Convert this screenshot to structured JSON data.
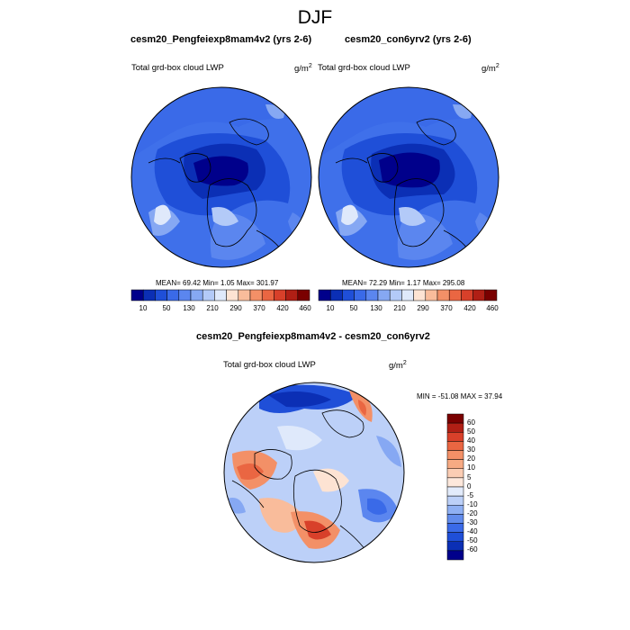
{
  "title": "DJF",
  "panels": {
    "left": {
      "title": "cesm20_Pengfeiexp8mam4v2 (yrs 2-6)",
      "variable": "Total grd-box cloud LWP",
      "units_base": "g/m",
      "units_exp": "2",
      "stats": "MEAN=  69.42  Min=   1.05  Max= 301.97"
    },
    "right": {
      "title": "cesm20_con6yrv2 (yrs 2-6)",
      "variable": "Total grd-box cloud LWP",
      "units_base": "g/m",
      "units_exp": "2",
      "stats": "MEAN=  72.29  Min=   1.17  Max= 295.08"
    },
    "diff": {
      "title": "cesm20_Pengfeiexp8mam4v2 - cesm20_con6yrv2",
      "variable": "Total grd-box cloud LWP",
      "units_base": "g/m",
      "units_exp": "2",
      "stats": "MIN = -51.08 MAX =  37.94"
    }
  },
  "colorbar_top": {
    "labels": [
      "10",
      "50",
      "130",
      "210",
      "290",
      "370",
      "420",
      "460"
    ],
    "colors": [
      "#00008b",
      "#0b2fb5",
      "#1f4fd8",
      "#3a6ae8",
      "#5b86ef",
      "#86a8f3",
      "#b3caf8",
      "#dfe9fb",
      "#fde3d3",
      "#f9bc9b",
      "#f39067",
      "#ea6642",
      "#d8402a",
      "#b01f15",
      "#7a0000"
    ]
  },
  "colorbar_diff": {
    "labels": [
      "60",
      "50",
      "40",
      "30",
      "20",
      "10",
      "5",
      "0",
      "-5",
      "-10",
      "-20",
      "-30",
      "-40",
      "-50",
      "-60"
    ],
    "colors": [
      "#7a0000",
      "#b01f15",
      "#d8402a",
      "#ea6642",
      "#f39067",
      "#f7aa83",
      "#fbcdb4",
      "#fde8dc",
      "#e2ebfb",
      "#bcd0f8",
      "#8fb0f3",
      "#628cec",
      "#3a6ae8",
      "#1f4fd8",
      "#0b2fb5",
      "#00008b"
    ]
  }
}
